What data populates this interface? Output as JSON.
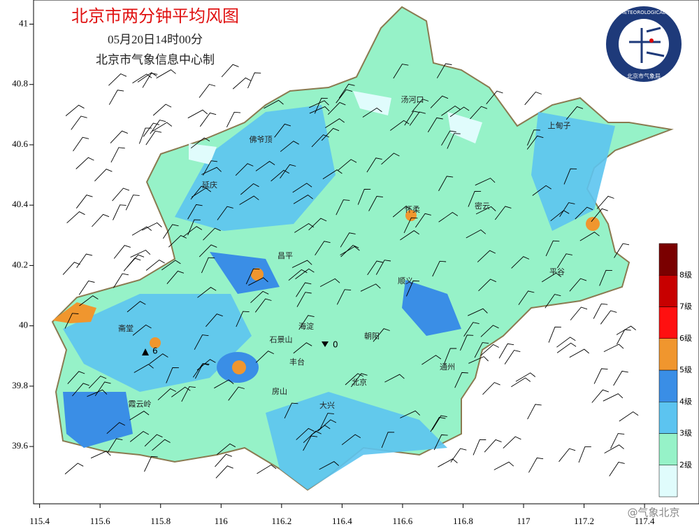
{
  "title": "北京市两分钟平均风图",
  "subtitle": "05月20日14时00分",
  "credit": "北京市气象信息中心制",
  "logo": {
    "ring": "BEIJING METEOROLOGICAL SERVICE",
    "bottom": "北京市气象局"
  },
  "axes": {
    "xlim": [
      115.38,
      117.58
    ],
    "ylim": [
      39.41,
      41.08
    ],
    "xticks": [
      115.4,
      115.6,
      115.8,
      116,
      116.2,
      116.4,
      116.6,
      116.8,
      117,
      117.2,
      117.4
    ],
    "yticks": [
      39.6,
      39.8,
      40,
      40.2,
      40.4,
      40.6,
      40.8,
      41
    ]
  },
  "legend": [
    {
      "label": "2级",
      "color": "#e0fcfc"
    },
    {
      "label": "3级",
      "color": "#96f2c8"
    },
    {
      "label": "4级",
      "color": "#5cc4f0"
    },
    {
      "label": "5级",
      "color": "#3a8ee6"
    },
    {
      "label": "6级",
      "color": "#f0962e"
    },
    {
      "label": "7级",
      "color": "#ff1010"
    },
    {
      "label": "8级",
      "color": "#c80000"
    },
    {
      "color": "#7a0000"
    }
  ],
  "places": [
    "汤河口",
    "上甸子",
    "佛爷顶",
    "延庆",
    "怀柔",
    "密云",
    "昌平",
    "平谷",
    "顺义",
    "斋堂",
    "海淀",
    "朝阳",
    "石景山",
    "丰台",
    "北京",
    "通州",
    "房山",
    "大兴",
    "霞云岭"
  ],
  "stations": [
    {
      "label": "6"
    },
    {
      "label": "0"
    }
  ],
  "watermark": "@气象北京"
}
